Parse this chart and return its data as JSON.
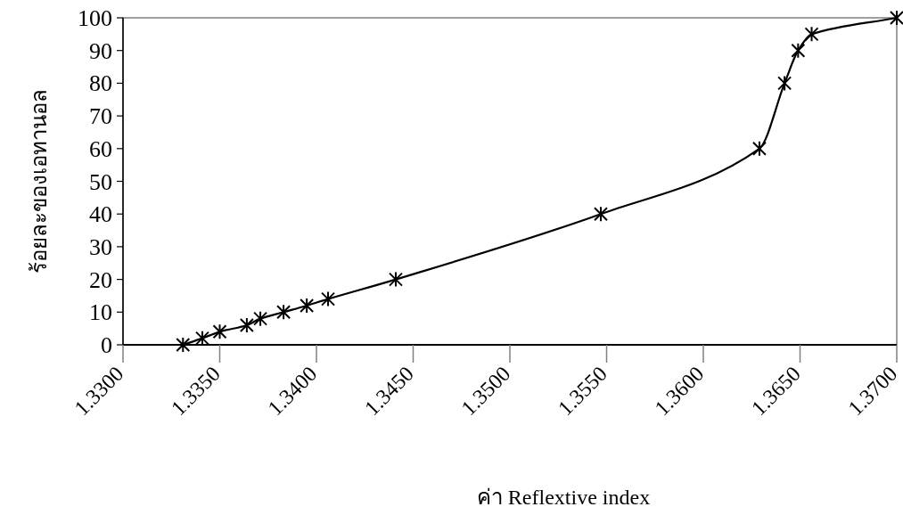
{
  "chart_data": {
    "type": "line",
    "xlabel": "ค่า Reflextive index",
    "ylabel": "ร้อยละของเอทานอล",
    "x": [
      1.3331,
      1.3341,
      1.335,
      1.3364,
      1.3371,
      1.3383,
      1.3395,
      1.3406,
      1.3441,
      1.3547,
      1.3629,
      1.3642,
      1.3649,
      1.3656,
      1.37
    ],
    "series": [
      {
        "color": "#000000",
        "values": [
          0,
          2,
          4,
          6,
          8,
          10,
          12,
          14,
          20,
          40,
          60,
          80,
          90,
          95,
          100
        ]
      }
    ],
    "xlim": [
      1.33,
      1.37
    ],
    "xticks": [
      {
        "value": 1.33,
        "label": "1.3300"
      },
      {
        "value": 1.335,
        "label": "1.3350"
      },
      {
        "value": 1.34,
        "label": "1.3400"
      },
      {
        "value": 1.345,
        "label": "1.3450"
      },
      {
        "value": 1.35,
        "label": "1.3500"
      },
      {
        "value": 1.355,
        "label": "1.3550"
      },
      {
        "value": 1.36,
        "label": "1.3600"
      },
      {
        "value": 1.365,
        "label": "1.3650"
      },
      {
        "value": 1.37,
        "label": "1.3700"
      }
    ],
    "ylim": [
      0,
      100
    ],
    "yticks": [
      0,
      10,
      20,
      30,
      40,
      50,
      60,
      70,
      80,
      90,
      100
    ],
    "grid": false,
    "marker": "cross",
    "line_style": "solid"
  }
}
